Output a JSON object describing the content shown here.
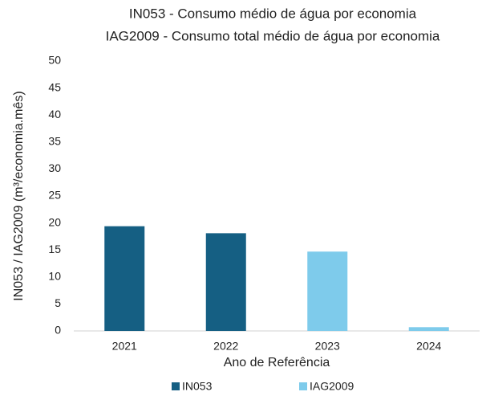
{
  "chart_data": {
    "type": "bar",
    "title": "IN053 - Consumo médio de água por economia",
    "subtitle": "IAG2009 - Consumo total médio de água por economia",
    "x_label": "Ano de Referência",
    "y_label": "IN053 / IAG2009  (m³/economia.mês)",
    "categories": [
      "2021",
      "2022",
      "2023",
      "2024"
    ],
    "series": [
      {
        "name": "IN053",
        "color": "#155f83",
        "values": [
          19.4,
          18.1,
          null,
          null
        ]
      },
      {
        "name": "IAG2009",
        "color": "#7ecbeb",
        "values": [
          null,
          null,
          14.7,
          0.7
        ]
      }
    ],
    "stacked": true,
    "ylim": [
      0,
      50
    ],
    "yticks": [
      0,
      5,
      10,
      15,
      20,
      25,
      30,
      35,
      40,
      45,
      50
    ],
    "grid": false,
    "legend": "bottom"
  }
}
